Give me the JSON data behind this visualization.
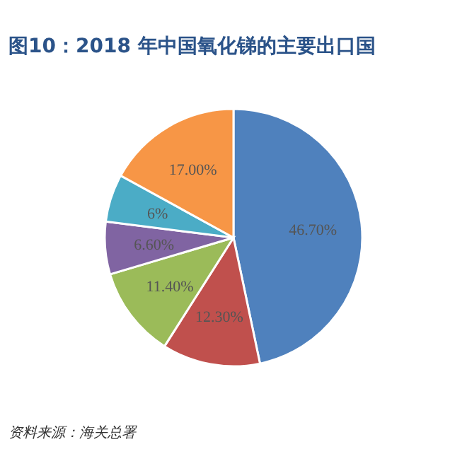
{
  "chart_data": {
    "type": "pie",
    "title": "图10：2018 年中国氧化锑的主要出口国",
    "categories": [
      null,
      null,
      null,
      null,
      null,
      null
    ],
    "values": [
      46.7,
      12.3,
      11.4,
      6.6,
      6,
      17
    ],
    "value_labels": [
      "46.70%",
      "12.30%",
      "11.40%",
      "6.60%",
      "6%",
      "17.00%"
    ],
    "colors": [
      "#4f81bd",
      "#c0504d",
      "#9bbb59",
      "#8064a2",
      "#4bacc6",
      "#f79646"
    ],
    "annotations": [
      "资料来源：海关总署"
    ]
  }
}
